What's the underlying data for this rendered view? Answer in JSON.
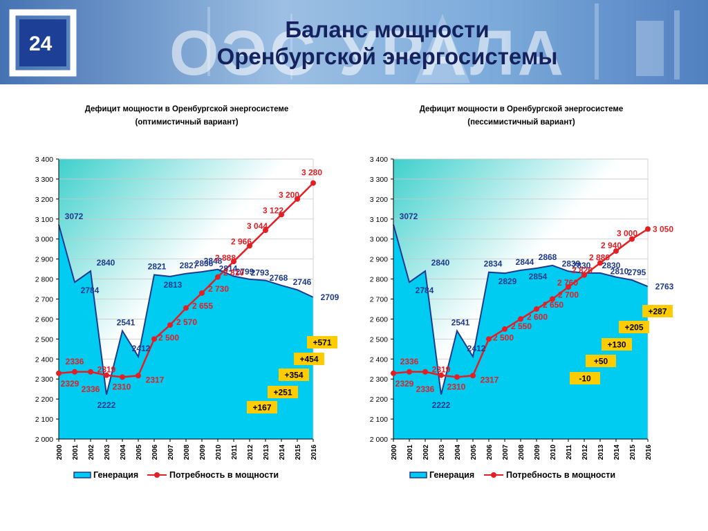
{
  "slide": {
    "number": "24",
    "logo_text": "ОЭС УРАЛА",
    "title_line1": "Баланс мощности",
    "title_line2": "Оренбургской энергосистемы"
  },
  "colors": {
    "generation_fill": "#00ccf2",
    "generation_line": "#1e3a8c",
    "demand_line": "#e31e24",
    "generation_label": "#1e3a8c",
    "demand_label": "#e31e24",
    "balance_box": "#ffcc00"
  },
  "chart_data": [
    {
      "type": "area",
      "title_line1": "Дефицит  мощности в Оренбургской  энергосистеме",
      "title_line2": "(оптимистичный вариант)",
      "x": [
        "2000",
        "2001",
        "2002",
        "2003",
        "2004",
        "2005",
        "2006",
        "2007",
        "2008",
        "2009",
        "2010",
        "2011",
        "2012",
        "2013",
        "2014",
        "2015",
        "2016"
      ],
      "ylim": [
        2000,
        3400
      ],
      "y_ticks": [
        "2 000",
        "2 100",
        "2 200",
        "2 300",
        "2 400",
        "2 500",
        "2 600",
        "2 700",
        "2 800",
        "2 900",
        "3 000",
        "3 100",
        "3 200",
        "3 300",
        "3 400"
      ],
      "legend_placement": "bottom",
      "series": [
        {
          "name": "Генерация",
          "kind": "area",
          "values": [
            3072,
            2784,
            2840,
            2222,
            2541,
            2412,
            2821,
            2813,
            2827,
            2836,
            2848,
            2814,
            2799,
            2793,
            2768,
            2746,
            2709
          ],
          "labels": [
            "3072",
            "2784",
            "2840",
            "2222",
            "2541",
            "2412",
            "2821",
            "2813",
            "2827",
            "2836",
            "2848",
            "2814",
            "2799",
            "2793",
            "2768",
            "2746",
            "2709"
          ]
        },
        {
          "name": "Потребность в мощности",
          "kind": "line",
          "values": [
            2329,
            2336,
            2336,
            2319,
            2310,
            2317,
            2500,
            2570,
            2655,
            2730,
            2810,
            2888,
            2966,
            3044,
            3122,
            3200,
            3280
          ],
          "labels": [
            "2329",
            "2336",
            "2336",
            "2319",
            "2310",
            "2317",
            "2 500",
            "2 570",
            "2 655",
            "2 730",
            "2 810",
            "2 888",
            "2 966",
            "3 044",
            "3 122",
            "3 200",
            "3 280"
          ]
        }
      ],
      "balance_boxes": [
        {
          "year": "2012",
          "value": "+167"
        },
        {
          "year": "2013",
          "value": "+251"
        },
        {
          "year": "2014",
          "value": "+354"
        },
        {
          "year": "2015",
          "value": "+454"
        },
        {
          "year": "2016",
          "value": "+571"
        }
      ]
    },
    {
      "type": "area",
      "title_line1": "Дефицит  мощности в Оренбургской  энергосистеме",
      "title_line2": "(пессимистичный вариант)",
      "x": [
        "2000",
        "2001",
        "2002",
        "2003",
        "2004",
        "2005",
        "2006",
        "2007",
        "2008",
        "2009",
        "2010",
        "2011",
        "2012",
        "2013",
        "2014",
        "2015",
        "2016"
      ],
      "ylim": [
        2000,
        3400
      ],
      "y_ticks": [
        "2 000",
        "2 100",
        "2 200",
        "2 300",
        "2 400",
        "2 500",
        "2 600",
        "2 700",
        "2 800",
        "2 900",
        "3 000",
        "3 100",
        "3 200",
        "3 300",
        "3 400"
      ],
      "legend_placement": "bottom",
      "series": [
        {
          "name": "Генерация",
          "kind": "area",
          "values": [
            3072,
            2784,
            2840,
            2222,
            2541,
            2412,
            2834,
            2829,
            2844,
            2854,
            2868,
            2839,
            2830,
            2830,
            2810,
            2795,
            2763
          ],
          "labels": [
            "3072",
            "2784",
            "2840",
            "2222",
            "2541",
            "2412",
            "2834",
            "2829",
            "2844",
            "2854",
            "2868",
            "2839",
            "2830",
            "2830",
            "2810",
            "2795",
            "2763"
          ]
        },
        {
          "name": "Потребность в мощности",
          "kind": "line",
          "values": [
            2329,
            2336,
            2336,
            2319,
            2310,
            2317,
            2500,
            2550,
            2600,
            2650,
            2700,
            2760,
            2820,
            2880,
            2940,
            3000,
            3050
          ],
          "labels": [
            "2329",
            "2336",
            "2336",
            "2319",
            "2310",
            "2317",
            "2 500",
            "2 550",
            "2 600",
            "2 650",
            "2 700",
            "2 760",
            "2 820",
            "2 880",
            "2 940",
            "3 000",
            "3 050"
          ]
        }
      ],
      "balance_boxes": [
        {
          "year": "2012",
          "value": "-10"
        },
        {
          "year": "2013",
          "value": "+50"
        },
        {
          "year": "2014",
          "value": "+130"
        },
        {
          "year": "2015",
          "value": "+205"
        },
        {
          "year": "2016",
          "value": "+287"
        }
      ]
    }
  ]
}
